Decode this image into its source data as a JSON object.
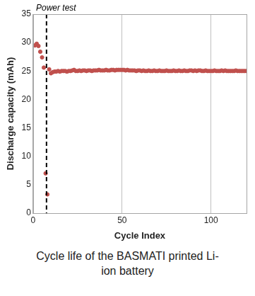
{
  "chart_data": {
    "type": "scatter",
    "title": "Cycle life of the BASMATI printed Li-ion battery",
    "x_label": "Cycle Index",
    "y_label": "Discharge capacity (mAh)",
    "xlim": [
      0,
      120
    ],
    "xticks": [
      0,
      50,
      100
    ],
    "ylim": [
      0,
      35
    ],
    "yticks": [
      0,
      5,
      10,
      15,
      20,
      25,
      30,
      35
    ],
    "grid": "x",
    "color": "#c0504d",
    "marker": "circle",
    "annotations": [
      {
        "text": "Power test",
        "x": 7.5,
        "line_style": "dashed"
      }
    ],
    "x": [
      1,
      2,
      3,
      4,
      5,
      6,
      7,
      8,
      9,
      10,
      11,
      12,
      13,
      14,
      15,
      16,
      17,
      18,
      19,
      20,
      21,
      22,
      23,
      24,
      25,
      26,
      27,
      28,
      29,
      30,
      31,
      32,
      33,
      34,
      35,
      36,
      37,
      38,
      39,
      40,
      41,
      42,
      43,
      44,
      45,
      46,
      47,
      48,
      49,
      50,
      51,
      52,
      53,
      54,
      55,
      56,
      57,
      58,
      59,
      60,
      61,
      62,
      63,
      64,
      65,
      66,
      67,
      68,
      69,
      70,
      71,
      72,
      73,
      74,
      75,
      76,
      77,
      78,
      79,
      80,
      81,
      82,
      83,
      84,
      85,
      86,
      87,
      88,
      89,
      90,
      91,
      92,
      93,
      94,
      95,
      96,
      97,
      98,
      99,
      100,
      101,
      102,
      103,
      104,
      105,
      106,
      107,
      108,
      109,
      110,
      111,
      112,
      113,
      114,
      115,
      116,
      117,
      118,
      119,
      120
    ],
    "values": [
      29.5,
      29.8,
      29.4,
      28.4,
      27.4,
      25.6,
      7.0,
      3.3,
      25.3,
      24.6,
      24.8,
      24.9,
      24.9,
      25.0,
      24.9,
      25.0,
      25.0,
      25.0,
      24.9,
      25.0,
      25.0,
      25.1,
      25.2,
      25.0,
      25.0,
      25.1,
      25.0,
      25.1,
      25.1,
      25.0,
      25.1,
      25.1,
      25.0,
      25.1,
      25.1,
      25.1,
      25.2,
      25.1,
      25.1,
      25.1,
      25.2,
      25.1,
      25.1,
      25.2,
      25.2,
      25.1,
      25.2,
      25.2,
      25.2,
      25.2,
      25.2,
      25.1,
      25.2,
      25.1,
      25.1,
      25.1,
      25.1,
      25.0,
      25.1,
      25.1,
      25.0,
      25.1,
      25.0,
      25.0,
      25.1,
      25.0,
      25.0,
      25.1,
      25.0,
      25.0,
      25.1,
      25.0,
      25.0,
      25.0,
      25.1,
      25.0,
      25.0,
      25.0,
      25.1,
      25.0,
      25.0,
      25.1,
      25.0,
      25.0,
      25.1,
      25.0,
      25.0,
      25.1,
      25.1,
      25.0,
      25.1,
      25.0,
      25.1,
      25.1,
      25.0,
      25.0,
      25.1,
      25.0,
      25.0,
      25.0,
      25.0,
      25.1,
      25.0,
      25.0,
      25.0,
      25.1,
      25.0,
      25.1,
      25.0,
      25.0,
      25.0,
      25.0,
      25.0,
      25.1,
      25.0,
      25.0,
      25.0,
      25.0,
      25.0,
      25.0
    ]
  }
}
